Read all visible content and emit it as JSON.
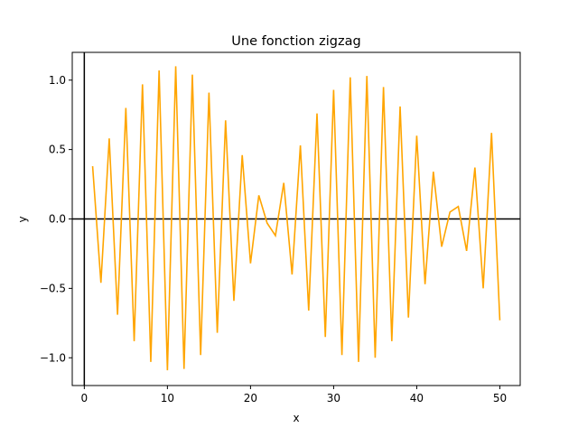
{
  "chart_data": {
    "type": "line",
    "title": "Une fonction zigzag",
    "xlabel": "x",
    "ylabel": "y",
    "xlim": [
      -1.45,
      52.45
    ],
    "ylim": [
      -1.2,
      1.2
    ],
    "xticks": [
      0,
      10,
      20,
      30,
      40,
      50
    ],
    "yticks": [
      -1.0,
      -0.5,
      0.0,
      0.5,
      1.0
    ],
    "xtick_labels": [
      "0",
      "10",
      "20",
      "30",
      "40",
      "50"
    ],
    "ytick_labels": [
      "−1.0",
      "−0.5",
      "0.0",
      "0.5",
      "1.0"
    ],
    "grid": false,
    "reference_lines": {
      "horizontal_at": 0,
      "vertical_at": 0
    },
    "colors": {
      "series": "#FFA500",
      "reference": "#000000"
    },
    "series": [
      {
        "x": [
          1,
          2,
          3,
          4,
          5,
          6,
          7,
          8,
          9,
          10,
          11,
          12,
          13,
          14,
          15,
          16,
          17,
          18,
          19,
          20,
          21,
          22,
          23,
          24,
          25,
          26,
          27,
          28,
          29,
          30,
          31,
          32,
          33,
          34,
          35,
          36,
          37,
          38,
          39,
          40,
          41,
          42,
          43,
          44,
          45,
          46,
          47,
          48,
          49,
          50
        ],
        "y": [
          0.38,
          -0.46,
          0.58,
          -0.69,
          0.8,
          -0.88,
          0.97,
          -1.03,
          1.07,
          -1.09,
          1.1,
          -1.08,
          1.04,
          -0.98,
          0.91,
          -0.82,
          0.71,
          -0.59,
          0.46,
          -0.32,
          0.17,
          -0.03,
          -0.12,
          0.26,
          -0.4,
          0.53,
          -0.66,
          0.76,
          -0.85,
          0.93,
          -0.98,
          1.02,
          -1.03,
          1.03,
          -1.0,
          0.95,
          -0.88,
          0.81,
          -0.71,
          0.6,
          -0.47,
          0.34,
          -0.2,
          0.05,
          0.09,
          -0.23,
          0.37,
          -0.5,
          0.62,
          -0.73
        ]
      }
    ]
  }
}
